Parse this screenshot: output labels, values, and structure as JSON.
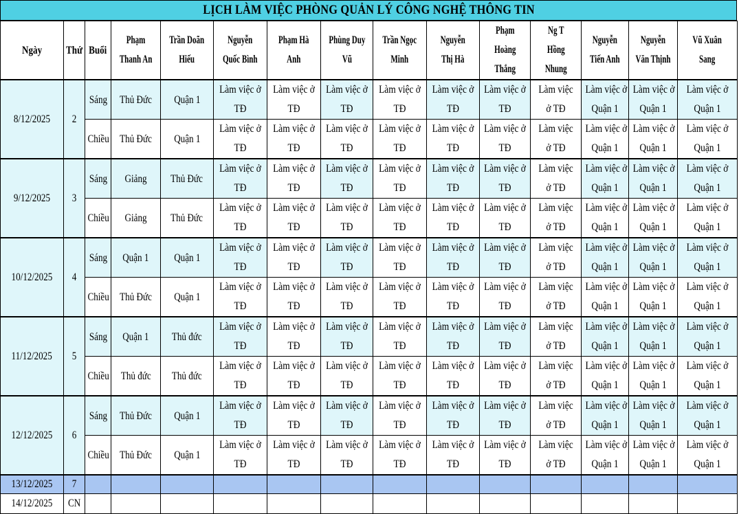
{
  "title": "LỊCH LÀM VIỆC PHÒNG QUẢN LÝ CÔNG NGHỆ THÔNG TIN",
  "headers": {
    "date": "Ngày",
    "weekday": "Thứ",
    "session": "Buổi",
    "staff": [
      [
        "Phạm",
        "Thanh An"
      ],
      [
        "Trần Doãn",
        "Hiếu"
      ],
      [
        "Nguyễn",
        "Quốc Bình"
      ],
      [
        "Phạm Hà",
        "Anh"
      ],
      [
        "Phùng Duy",
        "Vũ"
      ],
      [
        "Trần Ngọc",
        "Minh"
      ],
      [
        "Nguyễn",
        "Thị Hà"
      ],
      [
        "Phạm",
        "Hoàng",
        "Thắng"
      ],
      [
        "Ng T",
        "Hồng",
        "Nhung"
      ],
      [
        "Nguyễn",
        "Tiến Anh"
      ],
      [
        "Nguyễn",
        "Văn Thịnh"
      ],
      [
        "Vũ Xuân",
        "Sang"
      ]
    ]
  },
  "work": {
    "td": [
      "Làm việc ở",
      "TĐ"
    ],
    "td_b": [
      "Làm việc",
      "ở TĐ"
    ],
    "q1": [
      "Làm việc ở",
      "Quận 1"
    ]
  },
  "days": [
    {
      "date": "8/12/2025",
      "weekday": "2",
      "sessions": [
        {
          "name": "Sáng",
          "a": "Thủ Đức",
          "b": "Quận 1"
        },
        {
          "name": "Chiều",
          "a": "Thủ Đức",
          "b": "Quận 1"
        }
      ]
    },
    {
      "date": "9/12/2025",
      "weekday": "3",
      "sessions": [
        {
          "name": "Sáng",
          "a": "Giảng",
          "b": "Thủ Đức"
        },
        {
          "name": "Chiều",
          "a": "Giảng",
          "b": "Thủ Đức"
        }
      ]
    },
    {
      "date": "10/12/2025",
      "weekday": "4",
      "sessions": [
        {
          "name": "Sáng",
          "a": "Quận 1",
          "b": "Quận 1"
        },
        {
          "name": "Chiều",
          "a": "Thủ Đức",
          "b": "Quận 1"
        }
      ]
    },
    {
      "date": "11/12/2025",
      "weekday": "5",
      "sessions": [
        {
          "name": "Sáng",
          "a": "Quận 1",
          "b": "Thủ đức"
        },
        {
          "name": "Chiều",
          "a": "Thủ đức",
          "b": "Thủ đức"
        }
      ]
    },
    {
      "date": "12/12/2025",
      "weekday": "6",
      "sessions": [
        {
          "name": "Sáng",
          "a": "Thủ Đức",
          "b": "Quận 1"
        },
        {
          "name": "Chiều",
          "a": "Thủ Đức",
          "b": "Quận 1"
        }
      ]
    }
  ],
  "weekend": [
    {
      "date": "13/12/2025",
      "weekday": "7"
    },
    {
      "date": "14/12/2025",
      "weekday": "CN"
    }
  ],
  "colors": {
    "title_bg": "#4fd0e3",
    "highlight": "#dff6fa",
    "saturday": "#a9c6f2"
  }
}
